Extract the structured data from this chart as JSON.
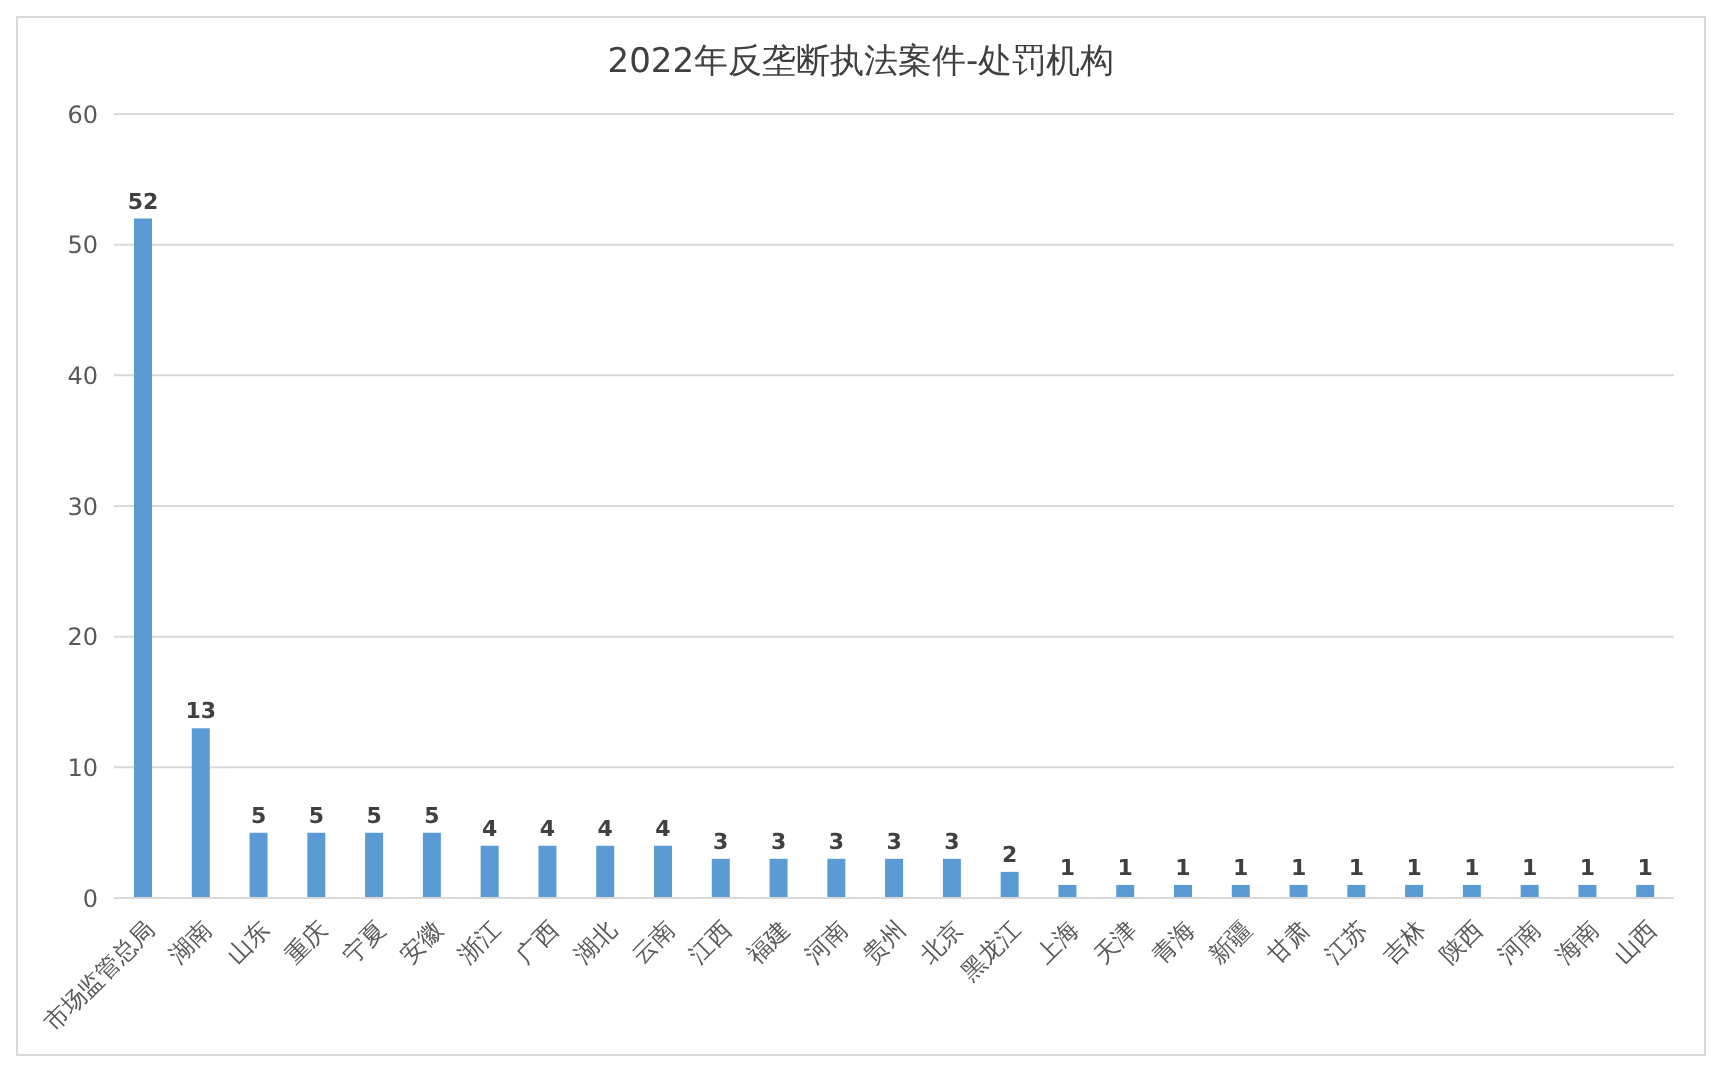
{
  "chart_data": {
    "type": "bar",
    "title": "2022年反垄断执法案件-处罚机构",
    "categories": [
      "市场监管总局",
      "湖南",
      "山东",
      "重庆",
      "宁夏",
      "安徽",
      "浙江",
      "广西",
      "湖北",
      "云南",
      "江西",
      "福建",
      "河南",
      "贵州",
      "北京",
      "黑龙江",
      "上海",
      "天津",
      "青海",
      "新疆",
      "甘肃",
      "江苏",
      "吉林",
      "陕西",
      "河南",
      "海南",
      "山西"
    ],
    "values": [
      52,
      13,
      5,
      5,
      5,
      5,
      4,
      4,
      4,
      4,
      3,
      3,
      3,
      3,
      3,
      2,
      1,
      1,
      1,
      1,
      1,
      1,
      1,
      1,
      1,
      1,
      1
    ],
    "color": "#5b9bd5",
    "ylim": [
      0,
      60
    ],
    "yticks": [
      0,
      10,
      20,
      30,
      40,
      50,
      60
    ],
    "grid": "y",
    "data_labels": true
  }
}
